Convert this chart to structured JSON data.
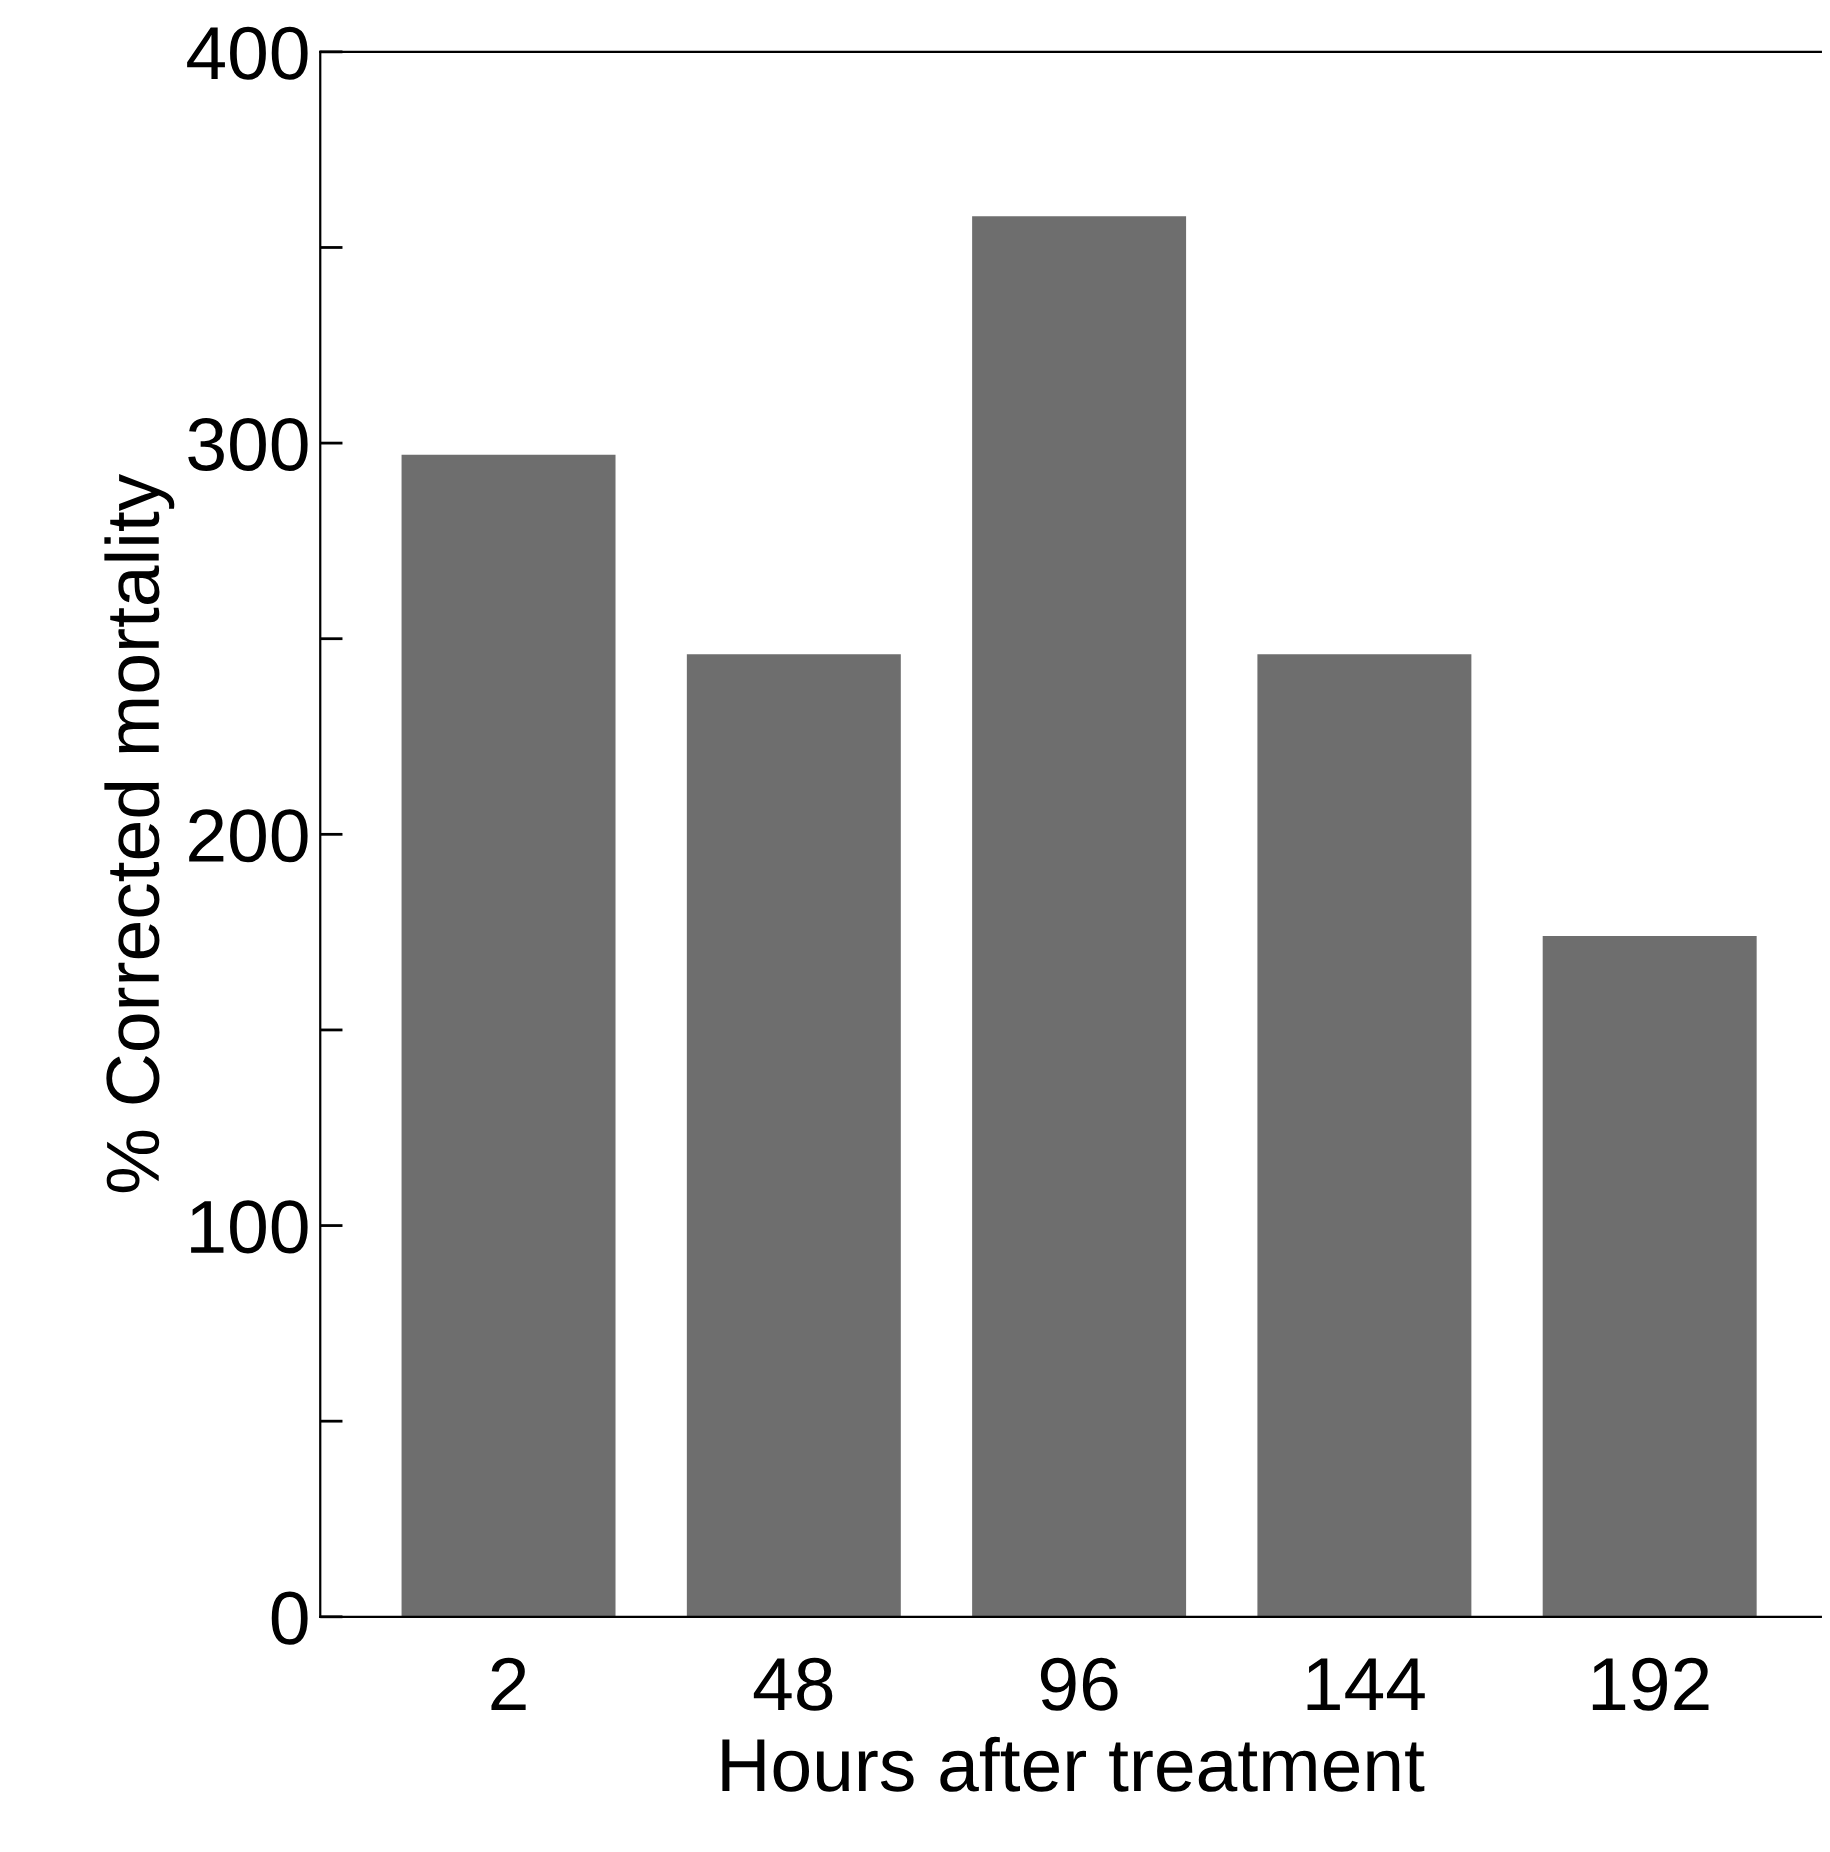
{
  "chart_data": {
    "type": "bar",
    "xlabel": "Hours after treatment",
    "ylabel": "% Corrected mortality",
    "categories": [
      "2",
      "48",
      "96",
      "144",
      "192"
    ],
    "values": [
      297,
      246,
      358,
      246,
      174
    ],
    "color": "#6e6e6e",
    "ylim": [
      0,
      400
    ],
    "yticks": [
      0,
      {
        "value": 50,
        "label": null
      },
      100,
      {
        "value": 150,
        "label": null
      },
      200,
      {
        "value": 250,
        "label": null
      },
      300,
      {
        "value": 350,
        "label": null
      },
      400
    ],
    "grid": false
  }
}
